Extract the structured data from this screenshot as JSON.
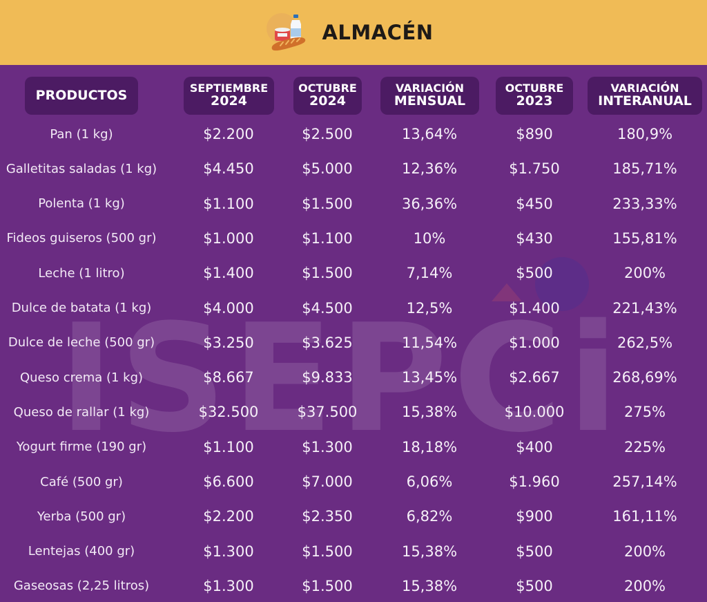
{
  "header": {
    "title": "ALMACÉN",
    "icon": "groceries-icon"
  },
  "watermark": "ISEPCi",
  "colors": {
    "header_bg": "#f0bb56",
    "page_bg": "#6a2c82",
    "pill_bg": "#4c1b63",
    "title_text": "#1e1a17",
    "cell_text": "#ffffff"
  },
  "columns": [
    {
      "line1": "PRODUCTOS",
      "line2": ""
    },
    {
      "line1": "SEPTIEMBRE",
      "line2": "2024"
    },
    {
      "line1": "OCTUBRE",
      "line2": "2024"
    },
    {
      "line1": "VARIACIÓN",
      "line2": "MENSUAL"
    },
    {
      "line1": "OCTUBRE",
      "line2": "2023"
    },
    {
      "line1": "VARIACIÓN",
      "line2": "INTERANUAL"
    }
  ],
  "rows": [
    [
      "Pan (1 kg)",
      "$2.200",
      "$2.500",
      "13,64%",
      "$890",
      "180,9%"
    ],
    [
      "Galletitas saladas (1 kg)",
      "$4.450",
      "$5.000",
      "12,36%",
      "$1.750",
      "185,71%"
    ],
    [
      "Polenta (1 kg)",
      "$1.100",
      "$1.500",
      "36,36%",
      "$450",
      "233,33%"
    ],
    [
      "Fideos guiseros (500 gr)",
      "$1.000",
      "$1.100",
      "10%",
      "$430",
      "155,81%"
    ],
    [
      "Leche (1 litro)",
      "$1.400",
      "$1.500",
      "7,14%",
      "$500",
      "200%"
    ],
    [
      "Dulce de batata (1 kg)",
      "$4.000",
      "$4.500",
      "12,5%",
      "$1.400",
      "221,43%"
    ],
    [
      "Dulce de leche (500 gr)",
      "$3.250",
      "$3.625",
      "11,54%",
      "$1.000",
      "262,5%"
    ],
    [
      "Queso crema (1 kg)",
      "$8.667",
      "$9.833",
      "13,45%",
      "$2.667",
      "268,69%"
    ],
    [
      "Queso de rallar (1 kg)",
      "$32.500",
      "$37.500",
      "15,38%",
      "$10.000",
      "275%"
    ],
    [
      "Yogurt firme (190 gr)",
      "$1.100",
      "$1.300",
      "18,18%",
      "$400",
      "225%"
    ],
    [
      "Café (500 gr)",
      "$6.600",
      "$7.000",
      "6,06%",
      "$1.960",
      "257,14%"
    ],
    [
      "Yerba (500 gr)",
      "$2.200",
      "$2.350",
      "6,82%",
      "$900",
      "161,11%"
    ],
    [
      "Lentejas (400 gr)",
      "$1.300",
      "$1.500",
      "15,38%",
      "$500",
      "200%"
    ],
    [
      "Gaseosas (2,25 litros)",
      "$1.300",
      "$1.500",
      "15,38%",
      "$500",
      "200%"
    ]
  ]
}
